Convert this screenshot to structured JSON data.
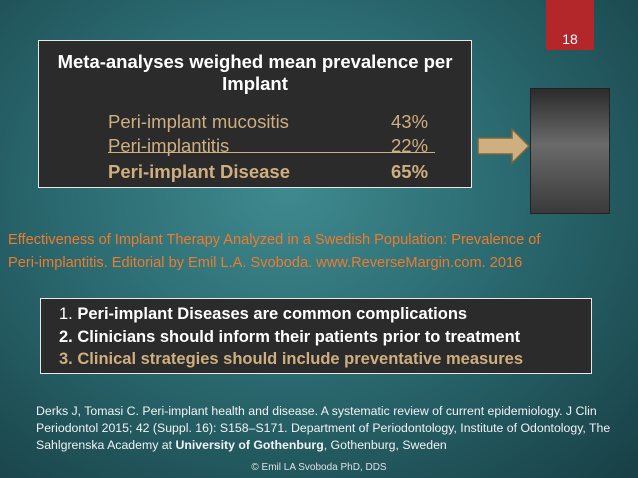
{
  "page_number": "18",
  "summary": {
    "title": "Meta-analyses weighed mean prevalence per Implant",
    "rows": [
      {
        "label": "Peri-implant mucositis",
        "value": "43%"
      },
      {
        "label": "Peri-implantitis",
        "value": "22%"
      },
      {
        "label": "Peri-implant Disease",
        "value": "65%"
      }
    ]
  },
  "citation": [
    "Effectiveness of Implant Therapy Analyzed in a Swedish Population: Prevalence of",
    "Peri-implantitis. Editorial by Emil L.A. Svoboda. www.ReverseMargin.com. 2016"
  ],
  "conclusions": [
    {
      "number": "1.",
      "text": "Peri-implant Diseases are common complications"
    },
    {
      "number": "2.",
      "text": "Clinicians should inform their patients prior to treatment"
    },
    {
      "number": "3.",
      "text": "Clinical strategies should include preventative measures"
    }
  ],
  "reference": {
    "line1": "Derks J, Tomasi C. Peri-implant health and disease. A systematic review of current epidemiology. J Clin",
    "line2": "Periodontol 2015; 42 (Suppl. 16): S158–S171. Department of Periodontology, Institute of Odontology, The",
    "line3_start": "Sahlgrenska Academy at ",
    "line3_bold": "University of Gothenburg",
    "line3_end": ", Gothenburg, Sweden"
  },
  "footer": "© Emil LA Svoboda PhD, DDS"
}
